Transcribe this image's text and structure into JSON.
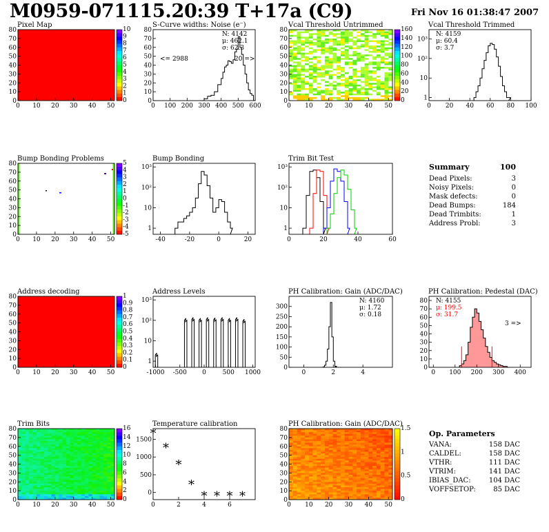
{
  "header": {
    "title": "M0959-071115.20:39 T+17a (C9)",
    "date": "Fri Nov 16 01:38:47 2007"
  },
  "summary": {
    "title": "Summary",
    "total": "100",
    "rows": [
      {
        "label": "Dead Pixels:",
        "value": "3"
      },
      {
        "label": "Noisy Pixels:",
        "value": "0"
      },
      {
        "label": "Mask defects:",
        "value": "0"
      },
      {
        "label": "Dead Bumps:",
        "value": "184"
      },
      {
        "label": "Dead Trimbits:",
        "value": "1"
      },
      {
        "label": "Address Probl:",
        "value": "3"
      }
    ]
  },
  "op_params": {
    "title": "Op. Parameters",
    "rows": [
      {
        "label": "VANA:",
        "value": "158 DAC"
      },
      {
        "label": "CALDEL:",
        "value": "158 DAC"
      },
      {
        "label": "VTHR:",
        "value": "111 DAC"
      },
      {
        "label": "VTRIM:",
        "value": "141 DAC"
      },
      {
        "label": "IBIAS_DAC:",
        "value": "104 DAC"
      },
      {
        "label": "VOFFSETOP:",
        "value": "85 DAC"
      }
    ]
  },
  "colors": {
    "red": "#ff0000",
    "green": "#00cc00",
    "blue": "#0000ff",
    "pedestal_fill": "#ff7777"
  },
  "chart_data": [
    {
      "id": "pixel_map",
      "type": "heatmap",
      "title": "Pixel Map",
      "xlim": [
        0,
        52
      ],
      "ylim": [
        0,
        80
      ],
      "xticks": [
        0,
        10,
        20,
        30,
        40,
        50
      ],
      "yticks": [
        0,
        10,
        20,
        30,
        40,
        50,
        60,
        70,
        80
      ],
      "fill": "#ff0000",
      "palette_ticks": [
        "0",
        "1",
        "2",
        "3",
        "4",
        "5",
        "6",
        "7",
        "8",
        "9",
        "10"
      ]
    },
    {
      "id": "scurve_noise",
      "type": "histogram",
      "title": "S-Curve widths: Noise (e⁻)",
      "xlim": [
        0,
        600
      ],
      "ylim": [
        0,
        80
      ],
      "xticks": [
        0,
        100,
        200,
        300,
        400,
        500,
        600
      ],
      "yticks": [
        0,
        10,
        20,
        30,
        40,
        50,
        60,
        70,
        80
      ],
      "stats": [
        "N: 4142",
        "μ: 462.1",
        "σ: 62.3"
      ],
      "underflow": "<= 2988",
      "overflow": "20 =>",
      "x": [
        280,
        300,
        320,
        340,
        360,
        380,
        400,
        410,
        420,
        430,
        440,
        450,
        460,
        470,
        480,
        490,
        500,
        510,
        520,
        530,
        540,
        550,
        560,
        570,
        580,
        590
      ],
      "y": [
        0,
        2,
        5,
        6,
        10,
        18,
        25,
        32,
        38,
        40,
        45,
        44,
        42,
        46,
        55,
        58,
        72,
        60,
        52,
        40,
        30,
        20,
        12,
        8,
        6,
        0
      ]
    },
    {
      "id": "vcal_untrimmed",
      "type": "heatmap",
      "title": "Vcal Threshold Untrimmed",
      "xlim": [
        0,
        52
      ],
      "ylim": [
        0,
        80
      ],
      "xticks": [
        0,
        10,
        20,
        30,
        40,
        50
      ],
      "yticks": [
        0,
        10,
        20,
        30,
        40,
        50,
        60,
        70,
        80
      ],
      "palette_ticks": [
        "0",
        "20",
        "40",
        "60",
        "80",
        "100",
        "120",
        "140",
        "160"
      ]
    },
    {
      "id": "vcal_trimmed",
      "type": "histogram",
      "title": "Vcal Threshold Trimmed",
      "log_y": true,
      "xlim": [
        0,
        100
      ],
      "ylim": [
        0.7,
        3000
      ],
      "xticks": [
        0,
        20,
        40,
        60,
        80,
        100
      ],
      "stats": [
        "N: 4159",
        "μ: 60.4",
        "σ:  3.7"
      ],
      "x": [
        44,
        46,
        48,
        50,
        52,
        54,
        56,
        58,
        60,
        62,
        64,
        66,
        68,
        70,
        72,
        74,
        76,
        78
      ],
      "y": [
        1,
        2,
        4,
        10,
        30,
        80,
        200,
        450,
        600,
        520,
        300,
        120,
        40,
        12,
        4,
        2,
        1,
        1
      ]
    },
    {
      "id": "bump_problems",
      "type": "heatmap",
      "title": "Bump Bonding Problems",
      "xlim": [
        0,
        52
      ],
      "ylim": [
        0,
        80
      ],
      "xticks": [
        0,
        10,
        20,
        30,
        40,
        50
      ],
      "yticks": [
        0,
        10,
        20,
        30,
        40,
        50,
        60,
        70,
        80
      ],
      "palette_ticks": [
        "-5",
        "-4",
        "-3",
        "-2",
        "-1",
        "0",
        "1",
        "2",
        "3",
        "4",
        "5"
      ]
    },
    {
      "id": "bump_bonding",
      "type": "histogram",
      "title": "Bump Bonding",
      "log_y": true,
      "xlim": [
        -45,
        25
      ],
      "ylim": [
        0.5,
        1500
      ],
      "xticks": [
        -40,
        -20,
        0,
        20
      ],
      "x": [
        -30,
        -28,
        -26,
        -24,
        -22,
        -20,
        -18,
        -16,
        -14,
        -12,
        -10,
        -8,
        -6,
        -4,
        -2,
        0,
        2,
        4,
        6,
        8
      ],
      "y": [
        1,
        2,
        2,
        3,
        4,
        6,
        10,
        30,
        150,
        600,
        400,
        120,
        30,
        6,
        10,
        25,
        20,
        6,
        2,
        1
      ]
    },
    {
      "id": "trim_bit_test",
      "type": "histogram",
      "title": "Trim Bit Test",
      "log_y": true,
      "xlim": [
        0,
        60
      ],
      "ylim": [
        0.5,
        1500
      ],
      "xticks": [
        0,
        20,
        40,
        60
      ],
      "series": [
        {
          "color": "#000000",
          "x": [
            8,
            10,
            12,
            14,
            16,
            18,
            20
          ],
          "y": [
            1,
            40,
            600,
            700,
            300,
            20,
            1
          ]
        },
        {
          "color": "#ff0000",
          "x": [
            12,
            14,
            16,
            18,
            20,
            22
          ],
          "y": [
            1,
            50,
            700,
            600,
            40,
            1
          ]
        },
        {
          "color": "#0000ff",
          "x": [
            20,
            22,
            24,
            26,
            28,
            30,
            32,
            34
          ],
          "y": [
            1,
            10,
            200,
            800,
            600,
            200,
            20,
            1
          ]
        },
        {
          "color": "#00cc00",
          "x": [
            22,
            24,
            26,
            28,
            30,
            32,
            34,
            36,
            38
          ],
          "y": [
            1,
            5,
            50,
            300,
            700,
            400,
            80,
            8,
            1
          ]
        }
      ]
    },
    {
      "id": "address_decoding",
      "type": "heatmap",
      "title": "Address decoding",
      "xlim": [
        0,
        52
      ],
      "ylim": [
        0,
        80
      ],
      "xticks": [
        0,
        10,
        20,
        30,
        40,
        50
      ],
      "yticks": [
        0,
        10,
        20,
        30,
        40,
        50,
        60,
        70,
        80
      ],
      "fill": "#ff0000",
      "palette_ticks": [
        "0",
        "0.1",
        "0.2",
        "0.3",
        "0.4",
        "0.5",
        "0.6",
        "0.7",
        "0.8",
        "0.9",
        "1"
      ]
    },
    {
      "id": "address_levels",
      "type": "histogram",
      "title": "Address Levels",
      "log_y": true,
      "xlim": [
        -1050,
        1050
      ],
      "ylim": [
        0.5,
        1500
      ],
      "xticks": [
        -1000,
        -500,
        0,
        500,
        1000
      ],
      "peaks": [
        -980,
        -380,
        -230,
        -80,
        70,
        220,
        370,
        520,
        670,
        820
      ],
      "heights": [
        2,
        100,
        110,
        100,
        110,
        105,
        110,
        100,
        110,
        90
      ]
    },
    {
      "id": "ph_gain",
      "type": "histogram",
      "title": "PH Calibration: Gain (ADC/DAC)",
      "xlim": [
        -1,
        6
      ],
      "ylim": [
        0,
        350
      ],
      "xticks": [
        0,
        2,
        4
      ],
      "yticks": [
        0,
        50,
        100,
        150,
        200,
        250,
        300
      ],
      "stats": [
        "N: 4160",
        "μ: 1.72",
        "σ: 0.18"
      ],
      "x": [
        1.3,
        1.4,
        1.5,
        1.6,
        1.7,
        1.8,
        1.9,
        2.0,
        2.1
      ],
      "y": [
        2,
        10,
        30,
        90,
        200,
        320,
        150,
        30,
        5
      ]
    },
    {
      "id": "ph_pedestal",
      "type": "histogram",
      "title": "PH Calibration: Pedestal (DAC)",
      "xlim": [
        -20,
        450
      ],
      "ylim": [
        0,
        85
      ],
      "xticks": [
        0,
        100,
        200,
        300,
        400
      ],
      "yticks": [
        0,
        10,
        20,
        30,
        40,
        50,
        60,
        70,
        80
      ],
      "stats": [
        "N: 4155",
        "μ: 199.5",
        "σ: 31.7"
      ],
      "overflow": "3 =>",
      "x": [
        120,
        130,
        140,
        150,
        160,
        170,
        180,
        190,
        200,
        210,
        220,
        230,
        240,
        250,
        260,
        270,
        280,
        290,
        300,
        310,
        320,
        330,
        340
      ],
      "y": [
        2,
        4,
        8,
        15,
        30,
        48,
        60,
        70,
        65,
        55,
        45,
        35,
        25,
        18,
        12,
        8,
        6,
        4,
        3,
        2,
        1,
        1,
        0
      ]
    },
    {
      "id": "trim_bits",
      "type": "heatmap",
      "title": "Trim Bits",
      "xlim": [
        0,
        52
      ],
      "ylim": [
        0,
        80
      ],
      "xticks": [
        0,
        10,
        20,
        30,
        40,
        50
      ],
      "yticks": [
        0,
        10,
        20,
        30,
        40,
        50,
        60,
        70,
        80
      ],
      "palette_ticks": [
        "0",
        "2",
        "4",
        "6",
        "8",
        "10",
        "12",
        "14",
        "16"
      ]
    },
    {
      "id": "temperature",
      "type": "scatter",
      "title": "Temperature calibration",
      "xlim": [
        0,
        8
      ],
      "ylim": [
        -200,
        1800
      ],
      "xticks": [
        0,
        2,
        4,
        6
      ],
      "yticks": [
        0,
        500,
        1000,
        1500
      ],
      "x": [
        0,
        1,
        2,
        3,
        4,
        5,
        6,
        7
      ],
      "y": [
        1680,
        1280,
        800,
        240,
        -80,
        -80,
        -80,
        -80
      ]
    },
    {
      "id": "ph_gain_map",
      "type": "heatmap",
      "title": "PH Calibration: Gain (ADC/DAC)",
      "xlim": [
        0,
        52
      ],
      "ylim": [
        0,
        80
      ],
      "xticks": [
        0,
        10,
        20,
        30,
        40,
        50
      ],
      "yticks": [
        0,
        10,
        20,
        30,
        40,
        50,
        60,
        70,
        80
      ],
      "palette_ticks": [
        "0",
        "0.5",
        "1",
        "1.5"
      ]
    }
  ]
}
